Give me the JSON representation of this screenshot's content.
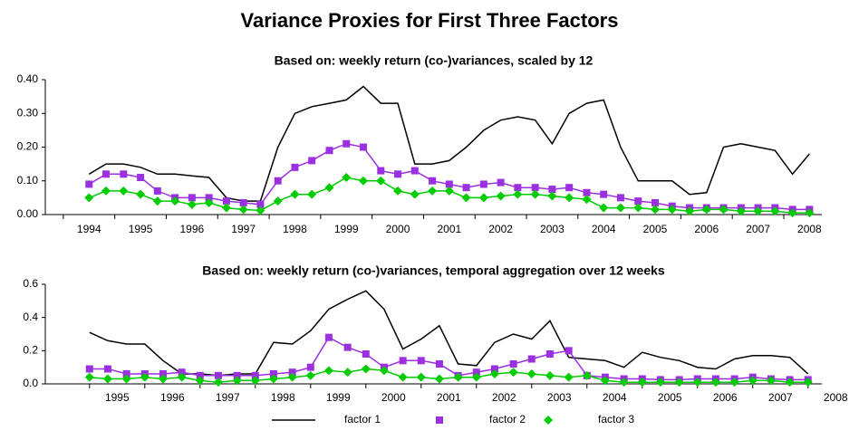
{
  "title": "Variance Proxies for First Three Factors",
  "chart_data": [
    {
      "type": "line",
      "title": "Based on: weekly return (co-)variances, scaled by 12",
      "x": [
        1994.5,
        1994.83,
        1995.17,
        1995.5,
        1995.83,
        1996.17,
        1996.5,
        1996.83,
        1997.17,
        1997.5,
        1997.83,
        1998.17,
        1998.5,
        1998.83,
        1999.17,
        1999.5,
        1999.83,
        2000.17,
        2000.5,
        2000.83,
        2001.17,
        2001.5,
        2001.83,
        2002.17,
        2002.5,
        2002.83,
        2003.17,
        2003.5,
        2003.83,
        2004.17,
        2004.5,
        2004.83,
        2005.17,
        2005.5,
        2005.83,
        2006.17,
        2006.5,
        2006.83,
        2007.17,
        2007.5,
        2007.83,
        2008.17,
        2008.5
      ],
      "series": [
        {
          "name": "factor 1",
          "color": "#000000",
          "marker": "none",
          "values": [
            0.12,
            0.15,
            0.15,
            0.14,
            0.12,
            0.12,
            0.115,
            0.11,
            0.05,
            0.04,
            0.04,
            0.2,
            0.3,
            0.32,
            0.33,
            0.34,
            0.38,
            0.33,
            0.33,
            0.15,
            0.15,
            0.16,
            0.2,
            0.25,
            0.28,
            0.29,
            0.28,
            0.21,
            0.3,
            0.33,
            0.34,
            0.2,
            0.1,
            0.1,
            0.1,
            0.06,
            0.065,
            0.2,
            0.21,
            0.2,
            0.19,
            0.12,
            0.18
          ]
        },
        {
          "name": "factor 2",
          "color": "#9b30e0",
          "marker": "square",
          "values": [
            0.09,
            0.12,
            0.12,
            0.11,
            0.07,
            0.05,
            0.05,
            0.05,
            0.04,
            0.035,
            0.03,
            0.1,
            0.14,
            0.16,
            0.19,
            0.21,
            0.2,
            0.13,
            0.12,
            0.13,
            0.1,
            0.09,
            0.08,
            0.09,
            0.095,
            0.08,
            0.08,
            0.075,
            0.08,
            0.065,
            0.06,
            0.05,
            0.04,
            0.035,
            0.025,
            0.02,
            0.02,
            0.02,
            0.02,
            0.02,
            0.02,
            0.015,
            0.015
          ]
        },
        {
          "name": "factor 3",
          "color": "#00cc00",
          "marker": "diamond",
          "values": [
            0.05,
            0.07,
            0.07,
            0.06,
            0.04,
            0.04,
            0.03,
            0.035,
            0.02,
            0.015,
            0.012,
            0.04,
            0.06,
            0.06,
            0.08,
            0.11,
            0.1,
            0.1,
            0.07,
            0.06,
            0.07,
            0.07,
            0.05,
            0.05,
            0.055,
            0.06,
            0.06,
            0.055,
            0.05,
            0.045,
            0.02,
            0.02,
            0.02,
            0.015,
            0.015,
            0.01,
            0.015,
            0.015,
            0.01,
            0.01,
            0.01,
            0.005,
            0.005
          ]
        }
      ],
      "xlim": [
        1993.65,
        2008.74
      ],
      "xticks": [
        1994,
        1995,
        1996,
        1997,
        1998,
        1999,
        2000,
        2001,
        2002,
        2003,
        2004,
        2005,
        2006,
        2007,
        2008
      ],
      "ylim": [
        0,
        0.4
      ],
      "yticks": [
        {
          "value": 0,
          "label": "0.00"
        },
        {
          "value": 0.1,
          "label": "0.10"
        },
        {
          "value": 0.2,
          "label": "0.20"
        },
        {
          "value": 0.3,
          "label": "0.30"
        },
        {
          "value": 0.4,
          "label": "0.40"
        }
      ]
    },
    {
      "type": "line",
      "title": "Based on: weekly return (co-)variances, temporal aggregation over 12 weeks",
      "x": [
        1995,
        1995.33,
        1995.67,
        1996,
        1996.33,
        1996.67,
        1997,
        1997.33,
        1997.67,
        1998,
        1998.33,
        1998.67,
        1999,
        1999.33,
        1999.67,
        2000,
        2000.33,
        2000.67,
        2001,
        2001.33,
        2001.67,
        2002,
        2002.33,
        2002.67,
        2003,
        2003.33,
        2003.67,
        2004,
        2004.33,
        2004.67,
        2005,
        2005.33,
        2005.67,
        2006,
        2006.33,
        2006.67,
        2007,
        2007.33,
        2007.67,
        2008
      ],
      "series": [
        {
          "color": "#000000",
          "marker": "none",
          "values": [
            0.31,
            0.26,
            0.24,
            0.24,
            0.14,
            0.06,
            0.06,
            0.05,
            0.06,
            0.06,
            0.25,
            0.24,
            0.32,
            0.45,
            0.51,
            0.56,
            0.45,
            0.21,
            0.27,
            0.35,
            0.12,
            0.11,
            0.25,
            0.3,
            0.27,
            0.38,
            0.16,
            0.15,
            0.14,
            0.1,
            0.19,
            0.16,
            0.14,
            0.1,
            0.09,
            0.15,
            0.17,
            0.17,
            0.16,
            0.06
          ]
        },
        {
          "color": "#9b30e0",
          "marker": "square",
          "values": [
            0.09,
            0.09,
            0.06,
            0.06,
            0.06,
            0.07,
            0.05,
            0.05,
            0.05,
            0.05,
            0.06,
            0.07,
            0.1,
            0.28,
            0.22,
            0.18,
            0.1,
            0.14,
            0.14,
            0.12,
            0.05,
            0.07,
            0.09,
            0.12,
            0.15,
            0.18,
            0.2,
            0.05,
            0.04,
            0.03,
            0.03,
            0.025,
            0.025,
            0.03,
            0.03,
            0.03,
            0.04,
            0.03,
            0.025,
            0.025
          ]
        },
        {
          "color": "#00cc00",
          "marker": "diamond",
          "values": [
            0.04,
            0.03,
            0.03,
            0.04,
            0.03,
            0.04,
            0.02,
            0.01,
            0.02,
            0.02,
            0.03,
            0.04,
            0.05,
            0.08,
            0.07,
            0.09,
            0.08,
            0.04,
            0.04,
            0.03,
            0.04,
            0.04,
            0.06,
            0.07,
            0.06,
            0.05,
            0.04,
            0.05,
            0.02,
            0.01,
            0.01,
            0.01,
            0.01,
            0.01,
            0.01,
            0.01,
            0.02,
            0.02,
            0.01,
            0.01
          ]
        }
      ],
      "xlim": [
        1994.2,
        2008.25
      ],
      "xticks": [
        1995,
        1996,
        1997,
        1998,
        1999,
        2000,
        2001,
        2002,
        2003,
        2004,
        2005,
        2006,
        2007,
        2008
      ],
      "ylim": [
        0,
        0.6
      ],
      "yticks": [
        {
          "value": 0,
          "label": "0.0"
        },
        {
          "value": 0.2,
          "label": "0.2"
        },
        {
          "value": 0.4,
          "label": "0.4"
        },
        {
          "value": 0.6,
          "label": "0.6"
        }
      ]
    }
  ]
}
